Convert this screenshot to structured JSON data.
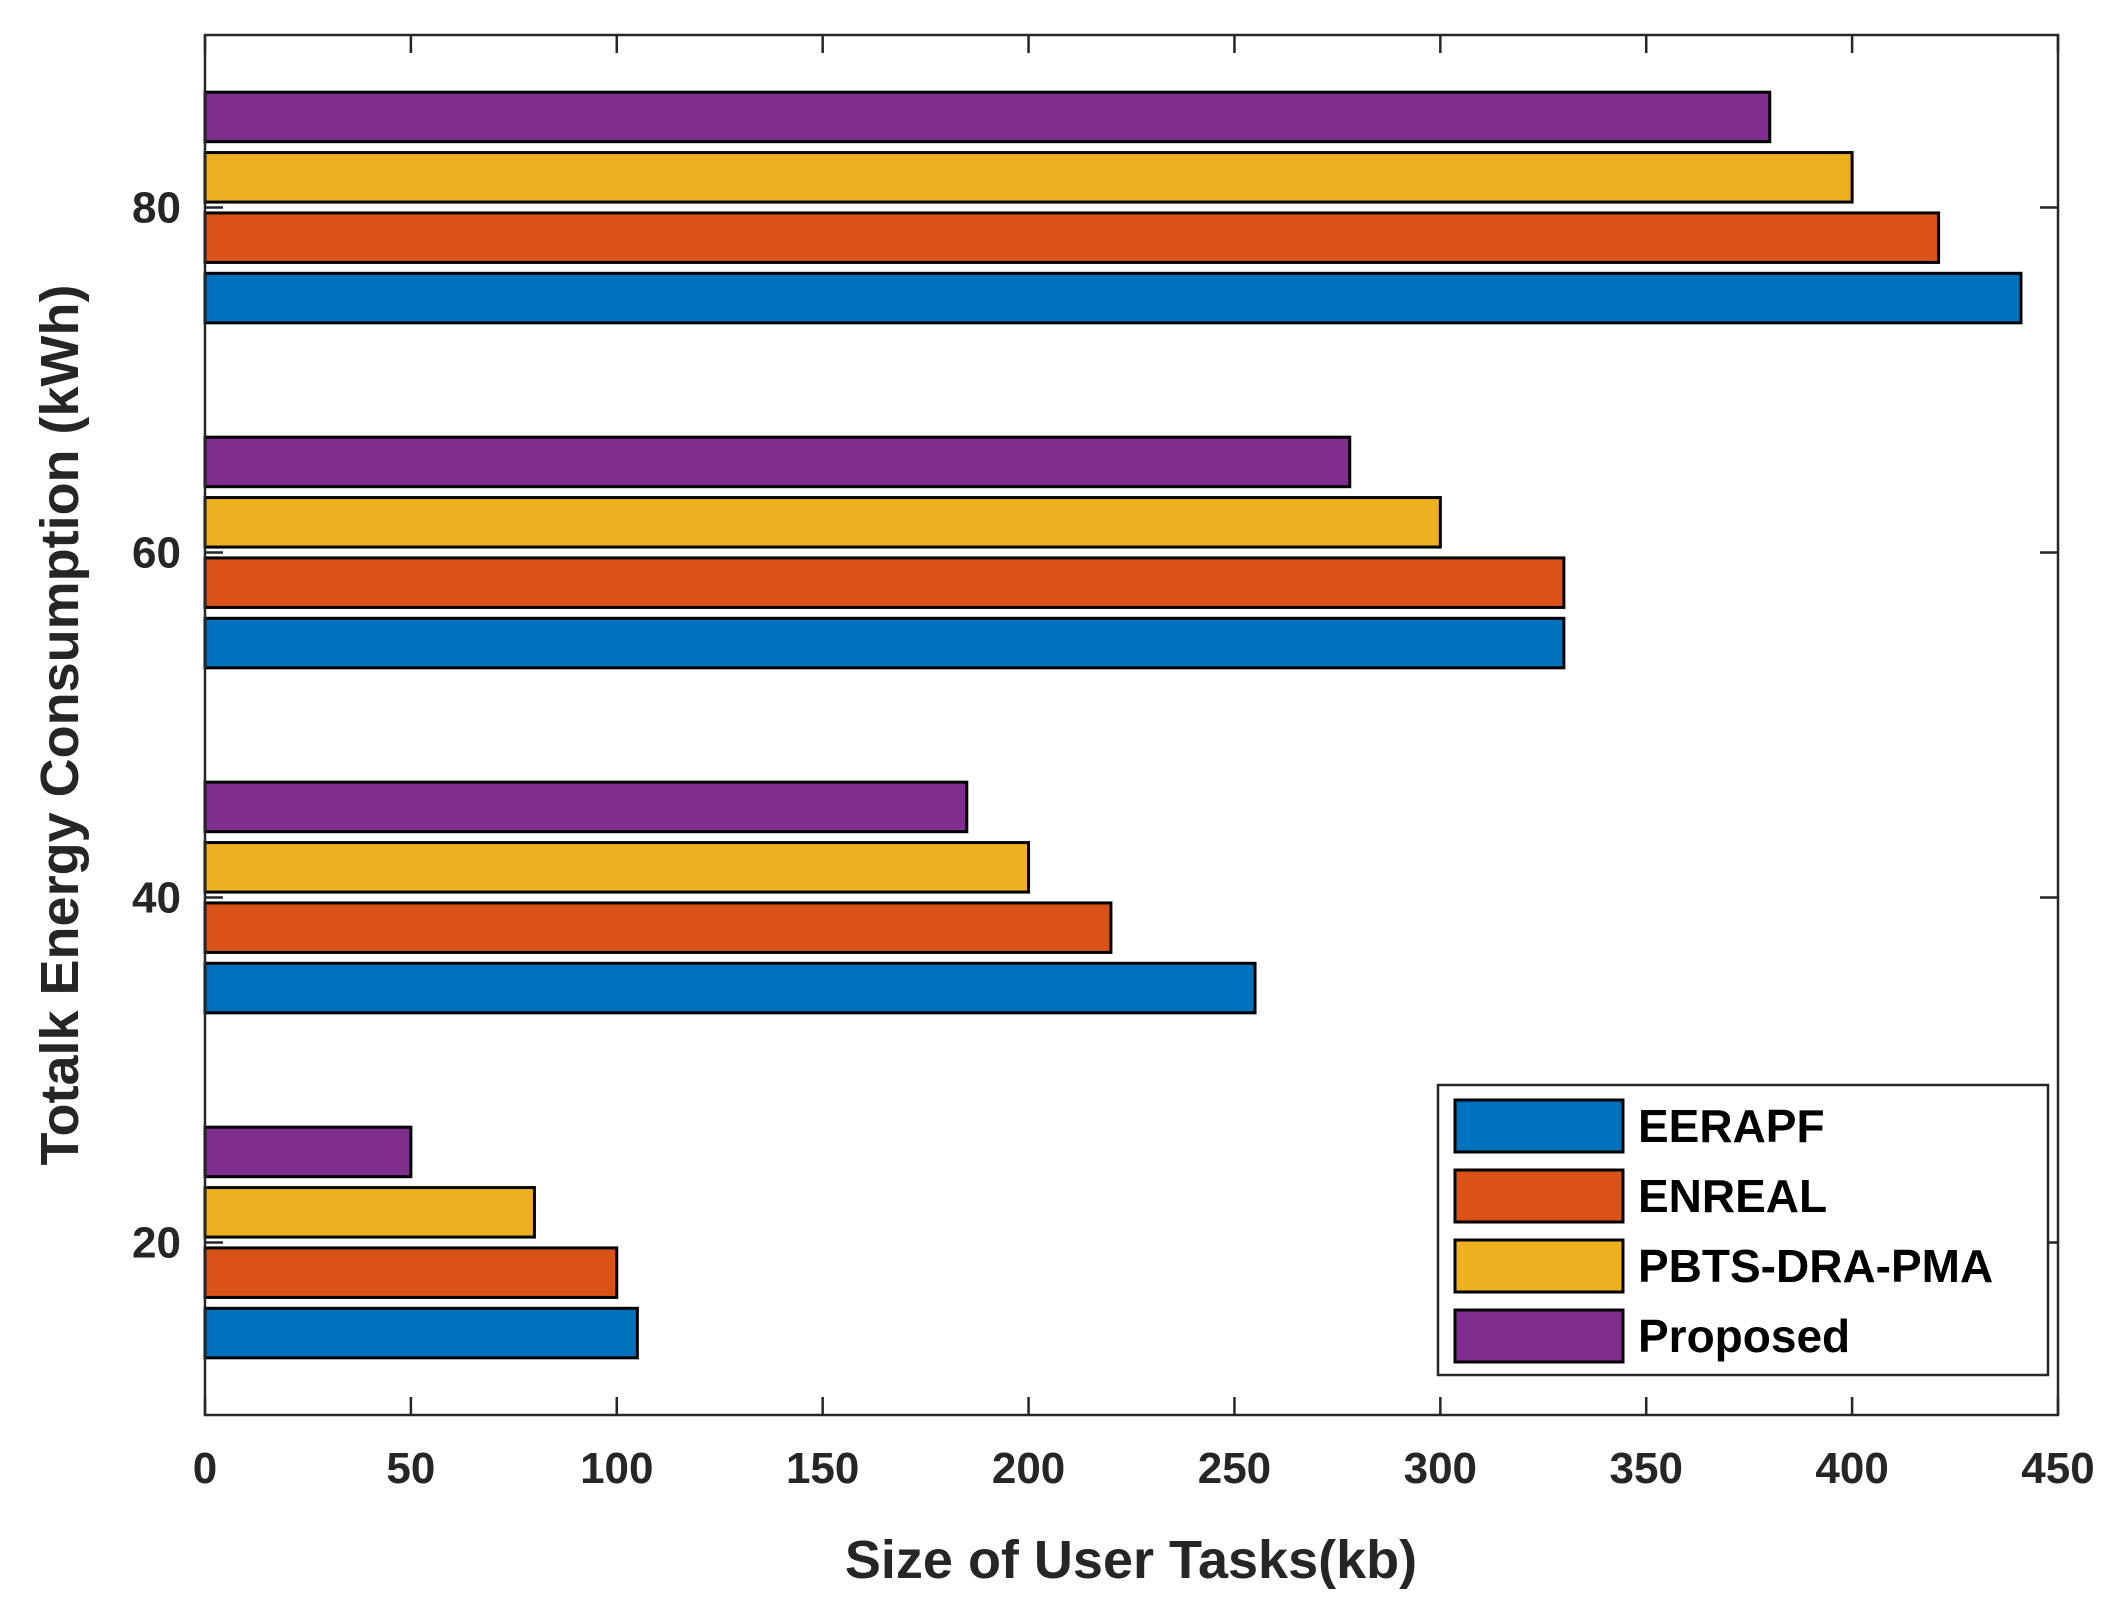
{
  "chart_data": {
    "type": "bar",
    "orientation": "horizontal",
    "title": "",
    "xlabel": "Size of User Tasks(kb)",
    "ylabel": "Totalk Energy Consumption (kWh)",
    "xlim": [
      0,
      450
    ],
    "ylim": [
      10,
      90
    ],
    "xticks": [
      0,
      50,
      100,
      150,
      200,
      250,
      300,
      350,
      400,
      450
    ],
    "yticks": [
      20,
      40,
      60,
      80
    ],
    "categories": [
      20,
      40,
      60,
      80
    ],
    "grid": false,
    "legend_position": "bottom-right",
    "series": [
      {
        "name": "EERAPF",
        "color": "#0072BD",
        "values": [
          105,
          255,
          330,
          441
        ]
      },
      {
        "name": "ENREAL",
        "color": "#D95319",
        "values": [
          100,
          220,
          330,
          421
        ]
      },
      {
        "name": "PBTS-DRA-PMA",
        "color": "#EDB120",
        "values": [
          80,
          200,
          300,
          400
        ]
      },
      {
        "name": "Proposed",
        "color": "#7E2F8E",
        "values": [
          50,
          185,
          278,
          380
        ]
      }
    ]
  }
}
